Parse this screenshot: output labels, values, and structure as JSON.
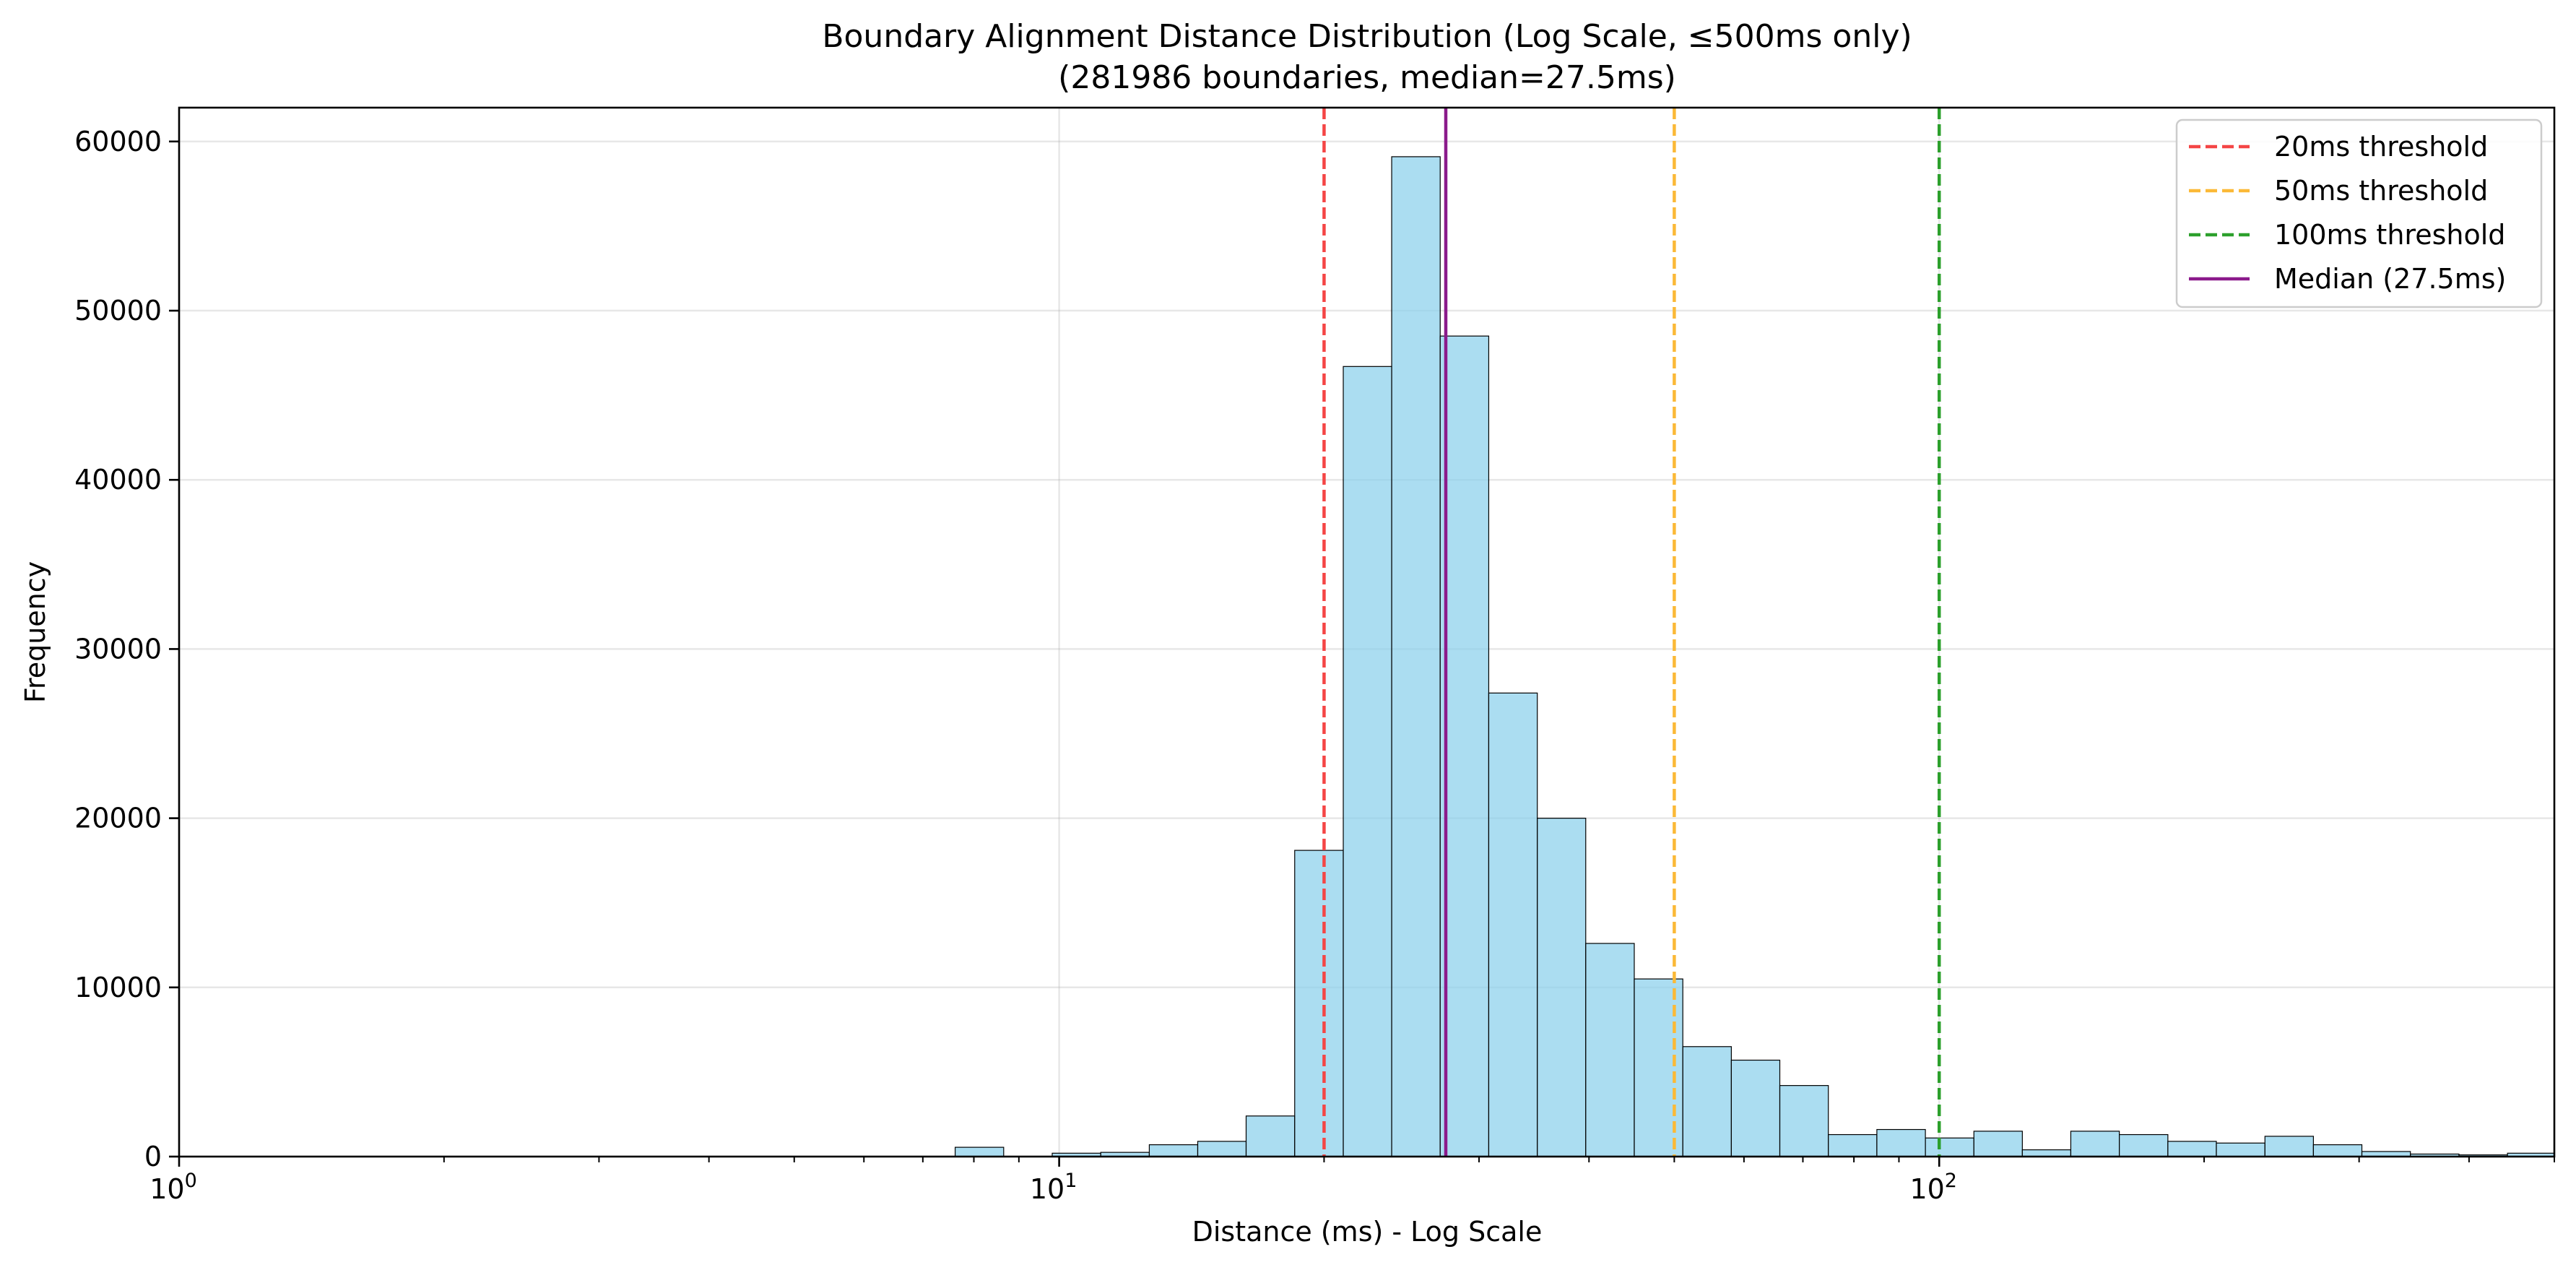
{
  "chart_data": {
    "type": "bar",
    "title": "Boundary Alignment Distance Distribution (Log Scale, ≤500ms only)",
    "subtitle": "(281986 boundaries, median=27.5ms)",
    "xlabel": "Distance (ms) - Log Scale",
    "ylabel": "Frequency",
    "x_scale": "log",
    "xlim": [
      1,
      500
    ],
    "ylim": [
      0,
      62000
    ],
    "y_ticks": [
      0,
      10000,
      20000,
      30000,
      40000,
      50000,
      60000
    ],
    "x_ticks": [
      {
        "value": 1,
        "base": "10",
        "exp": "0"
      },
      {
        "value": 10,
        "base": "10",
        "exp": "1"
      },
      {
        "value": 100,
        "base": "10",
        "exp": "2"
      }
    ],
    "grid": true,
    "legend_position": "top-right",
    "bin_edges": [
      1,
      1.135,
      1.289,
      1.463,
      1.661,
      1.886,
      2.141,
      2.431,
      2.76,
      3.133,
      3.557,
      4.039,
      4.585,
      5.206,
      5.91,
      6.71,
      7.618,
      8.649,
      9.82,
      11.15,
      12.66,
      14.37,
      16.31,
      18.52,
      21.03,
      23.87,
      27.1,
      30.77,
      34.94,
      39.66,
      45.03,
      51.13,
      58.05,
      65.9,
      74.82,
      84.95,
      96.45,
      109.5,
      124.3,
      141.1,
      160.2,
      181.9,
      206.5,
      234.5,
      266.2,
      302.2,
      343.1,
      389.6,
      442.3,
      502.2
    ],
    "counts": [
      0,
      0,
      0,
      0,
      0,
      0,
      0,
      0,
      0,
      0,
      0,
      0,
      0,
      0,
      0,
      0,
      550,
      0,
      200,
      250,
      700,
      900,
      2400,
      18100,
      46700,
      59100,
      48500,
      27400,
      20000,
      12600,
      10500,
      6500,
      5700,
      4200,
      1300,
      1600,
      1100,
      1500,
      400,
      1500,
      1300,
      900,
      800,
      1200,
      700,
      300,
      150,
      100,
      200
    ],
    "reference_lines": [
      {
        "name": "20ms threshold",
        "x": 20,
        "color": "#f44545",
        "style": "dashed"
      },
      {
        "name": "50ms threshold",
        "x": 50,
        "color": "#fbb937",
        "style": "dashed"
      },
      {
        "name": "100ms threshold",
        "x": 100,
        "color": "#2ca02c",
        "style": "dashed"
      },
      {
        "name": "Median (27.5ms)",
        "x": 27.5,
        "color": "#8b1a8b",
        "style": "solid"
      }
    ]
  }
}
